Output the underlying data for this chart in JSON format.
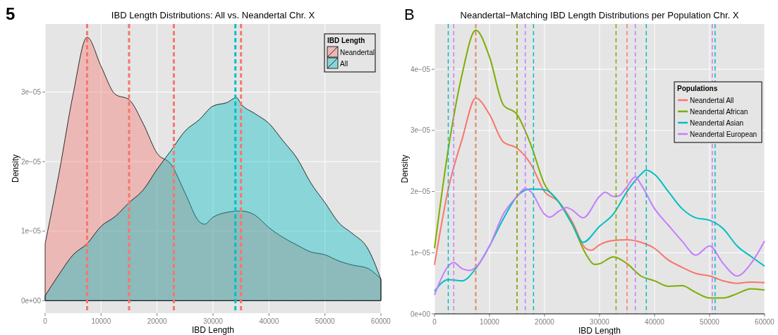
{
  "chart_data": [
    {
      "type": "area",
      "title": "IBD Length Distributions: All vs. Neandertal Chr. X",
      "xlabel": "IBD Length",
      "ylabel": "Density",
      "legend_title": "IBD Length",
      "legend": "top right",
      "grid": true,
      "annotations": [
        "5"
      ],
      "xlim": [
        0,
        60000
      ],
      "xticks": [
        0,
        10000,
        20000,
        30000,
        40000,
        50000,
        60000
      ],
      "ylim": [
        -1.8e-06,
        3.98e-05
      ],
      "yticks": [
        {
          "value": 0,
          "label": "0e+00"
        },
        {
          "value": 1e-05,
          "label": "1e−05"
        },
        {
          "value": 2e-05,
          "label": "2e−05"
        },
        {
          "value": 3e-05,
          "label": "3e−05"
        }
      ],
      "x": [
        0,
        2500,
        5000,
        7500,
        10000,
        12500,
        15000,
        17500,
        20000,
        22500,
        25000,
        27500,
        28500,
        30000,
        32500,
        35000,
        37500,
        40000,
        42500,
        45000,
        47500,
        50000,
        52500,
        55000,
        57500,
        60000
      ],
      "series": [
        {
          "name": "Neandertal",
          "color": "#f8766d",
          "values": [
            8.2e-06,
            1.84e-05,
            2.97e-05,
            3.79e-05,
            3.37e-05,
            2.97e-05,
            2.89e-05,
            2.55e-05,
            2.12e-05,
            1.96e-05,
            1.55e-05,
            1.14e-05,
            1.1e-05,
            1.2e-05,
            1.27e-05,
            1.29e-05,
            1.23e-05,
            1.05e-05,
            9.1e-06,
            8e-06,
            7e-06,
            6.6e-06,
            5.7e-06,
            5.1e-06,
            4.7e-06,
            3.1e-06
          ]
        },
        {
          "name": "All",
          "color": "#00bfc4",
          "x": [
            0,
            2500,
            5000,
            7500,
            10000,
            12500,
            15000,
            17500,
            20000,
            22500,
            25000,
            27500,
            30000,
            32500,
            34200,
            35000,
            37500,
            40000,
            42500,
            45000,
            47500,
            50000,
            52500,
            55000,
            57500,
            60000
          ],
          "values": [
            7e-07,
            3.8e-06,
            6.6e-06,
            8.2e-06,
            1.07e-05,
            1.21e-05,
            1.41e-05,
            1.59e-05,
            1.89e-05,
            2.16e-05,
            2.44e-05,
            2.6e-05,
            2.8e-05,
            2.85e-05,
            2.92e-05,
            2.83e-05,
            2.69e-05,
            2.55e-05,
            2.3e-05,
            2.05e-05,
            1.69e-05,
            1.41e-05,
            1.12e-05,
            9.6e-06,
            7.7e-06,
            3.1e-06
          ]
        }
      ],
      "ref_lines": [
        {
          "axis": "x",
          "value": 7500,
          "color": "#f8766d",
          "line_style": "dashed"
        },
        {
          "axis": "x",
          "value": 15000,
          "color": "#f8766d",
          "line_style": "dashed"
        },
        {
          "axis": "x",
          "value": 23000,
          "color": "#f8766d",
          "line_style": "dashed"
        },
        {
          "axis": "x",
          "value": 35000,
          "color": "#f8766d",
          "line_style": "dashed"
        },
        {
          "axis": "x",
          "value": 34000,
          "color": "#00bfc4",
          "line_style": "dashed"
        }
      ]
    },
    {
      "type": "line",
      "title": "Neandertal−Matching IBD Length Distributions per Population Chr. X",
      "xlabel": "IBD Length",
      "ylabel": "Density",
      "legend_title": "Populations",
      "legend": "top right",
      "grid": true,
      "annotations": [
        "B"
      ],
      "xlim": [
        0,
        60000
      ],
      "xticks": [
        0,
        10000,
        20000,
        30000,
        40000,
        50000,
        60000
      ],
      "ylim": [
        0,
        4.74e-05
      ],
      "yticks": [
        {
          "value": 0,
          "label": "0e+00"
        },
        {
          "value": 1e-05,
          "label": "1e−05"
        },
        {
          "value": 2e-05,
          "label": "2e−05"
        },
        {
          "value": 3e-05,
          "label": "3e−05"
        },
        {
          "value": 4e-05,
          "label": "4e−05"
        }
      ],
      "x": [
        0,
        2500,
        5000,
        7500,
        10000,
        12500,
        15000,
        17500,
        20000,
        22500,
        25000,
        27500,
        28500,
        30000,
        32500,
        35000,
        37500,
        40000,
        42500,
        45000,
        47500,
        50000,
        52500,
        55000,
        57500,
        60000
      ],
      "series": [
        {
          "name": "Neandertal All",
          "color": "#f8766d",
          "values": [
            8e-06,
            2.04e-05,
            2.85e-05,
            3.53e-05,
            3.26e-05,
            2.81e-05,
            2.71e-05,
            2.45e-05,
            2e-05,
            1.84e-05,
            1.51e-05,
            1.07e-05,
            1.04e-05,
            1.13e-05,
            1.2e-05,
            1.21e-05,
            1.17e-05,
            1.07e-05,
            8.8e-06,
            7.6e-06,
            6.6e-06,
            6.2e-06,
            5.4e-06,
            5e-06,
            5.2e-06,
            5.1e-06
          ]
        },
        {
          "name": "Neandertal African",
          "color": "#7cae00",
          "x": [
            0,
            2500,
            5000,
            7500,
            10000,
            12500,
            15000,
            17500,
            20000,
            22500,
            25000,
            27500,
            29000,
            30000,
            32500,
            35000,
            37500,
            40000,
            42500,
            45000,
            47500,
            50000,
            52500,
            55000,
            57500,
            60000
          ],
          "values": [
            1.07e-05,
            2.69e-05,
            3.91e-05,
            4.64e-05,
            4.2e-05,
            3.42e-05,
            3.26e-05,
            2.77e-05,
            2.12e-05,
            1.84e-05,
            1.47e-05,
            9.8e-06,
            8.1e-06,
            8.2e-06,
            9.3e-06,
            8.2e-06,
            6.2e-06,
            5.4e-06,
            4.5e-06,
            4.6e-06,
            3.5e-06,
            2.6e-06,
            2.6e-06,
            3.3e-06,
            4.1e-06,
            3.9e-06
          ]
        },
        {
          "name": "Neandertal Asian",
          "color": "#00bfc4",
          "x": [
            0,
            2500,
            5000,
            7500,
            10000,
            12500,
            15000,
            17500,
            20000,
            22500,
            25000,
            27000,
            30000,
            32500,
            35000,
            37500,
            38500,
            40000,
            42500,
            45000,
            47500,
            50000,
            52500,
            55000,
            57500,
            60000
          ],
          "values": [
            3.7e-06,
            5.6e-06,
            5.4e-06,
            7.4e-06,
            1.11e-05,
            1.55e-05,
            1.92e-05,
            2.04e-05,
            2.03e-05,
            1.84e-05,
            1.47e-05,
            1.17e-05,
            1.43e-05,
            1.63e-05,
            2e-05,
            2.28e-05,
            2.35e-05,
            2.28e-05,
            2e-05,
            1.72e-05,
            1.57e-05,
            1.53e-05,
            1.39e-05,
            1.11e-05,
            9.4e-06,
            7.8e-06
          ]
        },
        {
          "name": "Neandertal European",
          "color": "#c77cff",
          "x": [
            0,
            2500,
            3500,
            5000,
            6500,
            7500,
            10000,
            12500,
            15000,
            16500,
            17500,
            20000,
            21000,
            22500,
            24000,
            25000,
            27000,
            30000,
            31000,
            32500,
            33500,
            35000,
            36500,
            37500,
            40000,
            42500,
            45000,
            47500,
            50000,
            52500,
            55000,
            57500,
            60000
          ],
          "values": [
            3.1e-06,
            7.8e-06,
            8.4e-06,
            7.4e-06,
            7.1e-06,
            7.6e-06,
            1.11e-05,
            1.63e-05,
            1.92e-05,
            2.05e-05,
            2e-05,
            1.63e-05,
            1.58e-05,
            1.67e-05,
            1.74e-05,
            1.7e-05,
            1.57e-05,
            1.92e-05,
            1.99e-05,
            1.92e-05,
            1.93e-05,
            2.08e-05,
            2.24e-05,
            2.12e-05,
            1.72e-05,
            1.45e-05,
            1.19e-05,
            9.6e-06,
            1.11e-05,
            8.2e-06,
            6.2e-06,
            8.2e-06,
            1.19e-05
          ]
        }
      ],
      "ref_lines": [
        {
          "axis": "x",
          "value": 2500,
          "color": "#00bfc4",
          "line_style": "dashed"
        },
        {
          "axis": "x",
          "value": 3500,
          "color": "#c77cff",
          "line_style": "dashed"
        },
        {
          "axis": "x",
          "value": 7500,
          "color": "#7cae00",
          "line_style": "dashed"
        },
        {
          "axis": "x",
          "value": 7500,
          "color": "#f8766d",
          "line_style": "dashed"
        },
        {
          "axis": "x",
          "value": 15000,
          "color": "#f8766d",
          "line_style": "dashed"
        },
        {
          "axis": "x",
          "value": 15000,
          "color": "#7cae00",
          "line_style": "dashed"
        },
        {
          "axis": "x",
          "value": 16500,
          "color": "#c77cff",
          "line_style": "dashed"
        },
        {
          "axis": "x",
          "value": 18000,
          "color": "#00bfc4",
          "line_style": "dashed"
        },
        {
          "axis": "x",
          "value": 33000,
          "color": "#7cae00",
          "line_style": "dashed"
        },
        {
          "axis": "x",
          "value": 35000,
          "color": "#f8766d",
          "line_style": "dashed"
        },
        {
          "axis": "x",
          "value": 36500,
          "color": "#c77cff",
          "line_style": "dashed"
        },
        {
          "axis": "x",
          "value": 38500,
          "color": "#00bfc4",
          "line_style": "dashed"
        },
        {
          "axis": "x",
          "value": 50500,
          "color": "#c77cff",
          "line_style": "dashed"
        },
        {
          "axis": "x",
          "value": 51000,
          "color": "#00bfc4",
          "line_style": "dashed"
        }
      ]
    }
  ]
}
